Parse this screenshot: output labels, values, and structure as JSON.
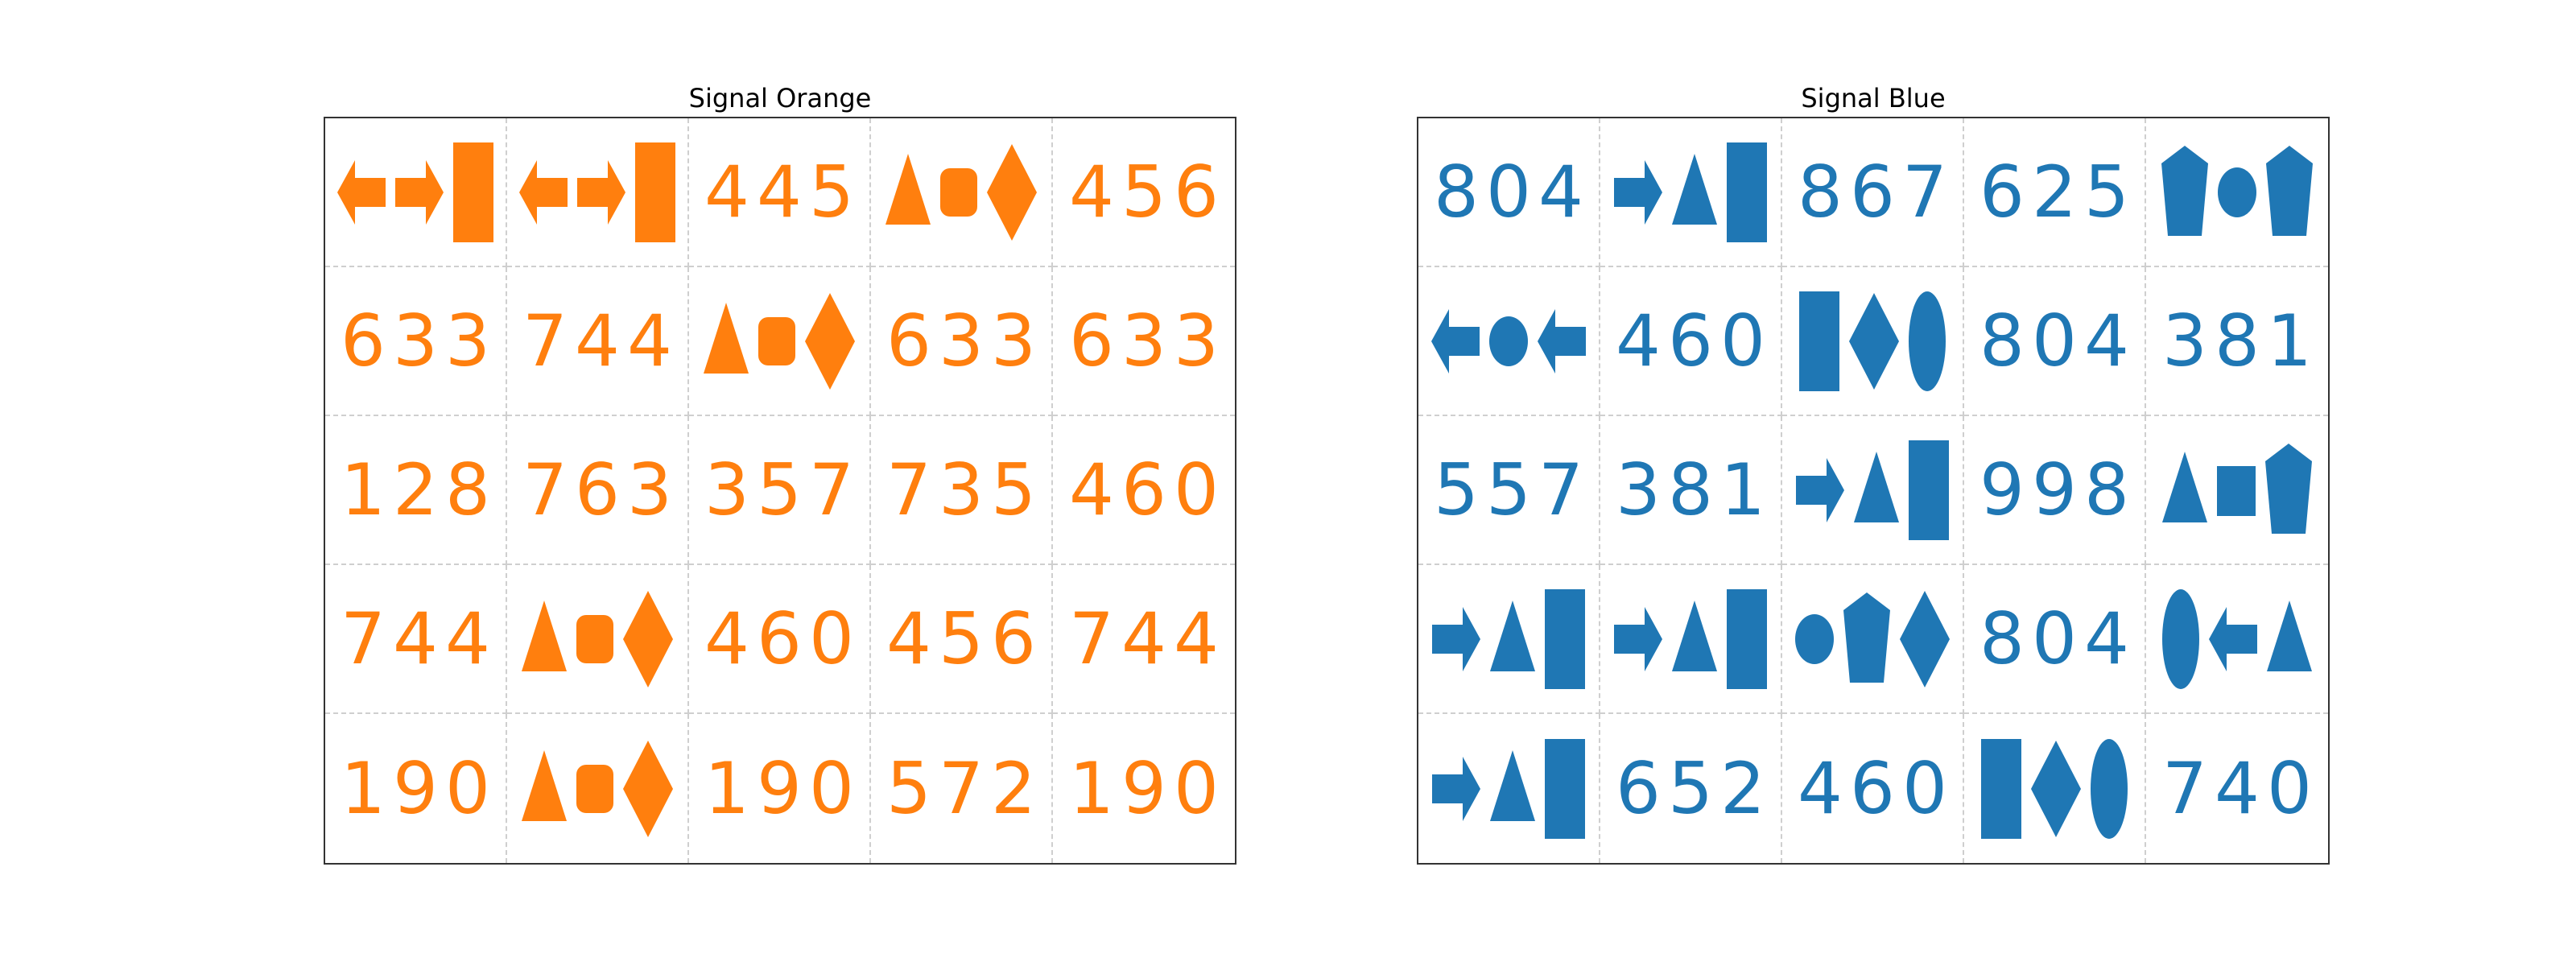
{
  "panels": [
    {
      "title": "Signal Orange",
      "color": "#ff7f0e",
      "cells": [
        [
          "icons:arrow-left,arrow-right,rectangle",
          "icons:arrow-left,arrow-right,rectangle",
          "445",
          "icons:triangle,rounded-square,diamond",
          "456"
        ],
        [
          "633",
          "744",
          "icons:triangle,rounded-square,diamond",
          "633",
          "633"
        ],
        [
          "128",
          "763",
          "357",
          "735",
          "460"
        ],
        [
          "744",
          "icons:triangle,rounded-square,diamond",
          "460",
          "456",
          "744"
        ],
        [
          "190",
          "icons:triangle,rounded-square,diamond",
          "190",
          "572",
          "190"
        ]
      ]
    },
    {
      "title": "Signal Blue",
      "color": "#1f77b4",
      "cells": [
        [
          "804",
          "icons:arrow-right,triangle,rectangle",
          "867",
          "625",
          "icons:pentagon,circle,pentagon"
        ],
        [
          "icons:arrow-left,circle,arrow-left",
          "460",
          "icons:rectangle,diamond,ellipse",
          "804",
          "381"
        ],
        [
          "557",
          "381",
          "icons:arrow-right,triangle,rectangle",
          "998",
          "icons:triangle,square,pentagon"
        ],
        [
          "icons:arrow-right,triangle,rectangle",
          "icons:arrow-right,triangle,rectangle",
          "icons:circle,pentagon,diamond",
          "804",
          "icons:ellipse,arrow-left,triangle"
        ],
        [
          "icons:arrow-right,triangle,rectangle",
          "652",
          "460",
          "icons:rectangle,diamond,ellipse",
          "740"
        ]
      ]
    }
  ]
}
